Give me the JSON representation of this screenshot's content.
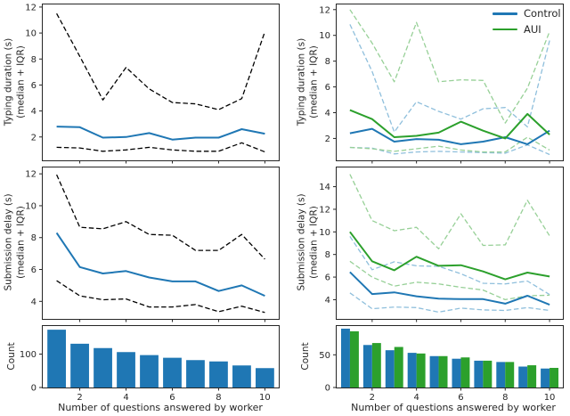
{
  "legend": {
    "entries": [
      {
        "label": "Control",
        "color": "#1f77b4"
      },
      {
        "label": "AUI",
        "color": "#2ca02c"
      }
    ]
  },
  "colors": {
    "control_solid": "#1f77b4",
    "aui_solid": "#2ca02c",
    "control_iqr_dashed": "#8fbfdc",
    "aui_iqr_dashed": "#97d097",
    "pooled_iqr_dashed": "#000000",
    "axis_text": "#262626"
  },
  "chart_data": [
    {
      "id": "top-left",
      "type": "line",
      "ylabel_lines": [
        "Typing duration (s)",
        "(median + IQR)"
      ],
      "x": [
        1,
        2,
        3,
        4,
        5,
        6,
        7,
        8,
        9,
        10
      ],
      "xlim": [
        0.4,
        10.6
      ],
      "ylim": [
        0.2,
        12.2
      ],
      "yticks": [
        2,
        4,
        6,
        8,
        10,
        12
      ],
      "xticks": [
        2,
        4,
        6,
        8,
        10
      ],
      "xtick_labels": false,
      "series": [
        {
          "name": "iqr-upper",
          "color": "#000000",
          "dash": true,
          "lw": 1.3,
          "values": [
            11.5,
            8.2,
            4.85,
            7.35,
            5.7,
            4.65,
            4.55,
            4.1,
            4.95,
            10.1
          ]
        },
        {
          "name": "iqr-lower",
          "color": "#000000",
          "dash": true,
          "lw": 1.3,
          "values": [
            1.2,
            1.15,
            0.9,
            1.0,
            1.2,
            1.0,
            0.9,
            0.9,
            1.55,
            0.85
          ]
        },
        {
          "name": "median",
          "color": "#1f77b4",
          "dash": false,
          "lw": 2,
          "values": [
            2.8,
            2.75,
            1.95,
            2.0,
            2.3,
            1.8,
            1.95,
            1.95,
            2.6,
            2.25
          ]
        }
      ]
    },
    {
      "id": "top-right",
      "type": "line",
      "ylabel_lines": [
        "Typing duration (s)",
        "(median + IQR)"
      ],
      "x": [
        1,
        2,
        3,
        4,
        5,
        6,
        7,
        8,
        9,
        10
      ],
      "xlim": [
        0.4,
        10.6
      ],
      "ylim": [
        0.3,
        12.4
      ],
      "yticks": [
        2,
        4,
        6,
        8,
        10,
        12
      ],
      "xticks": [
        2,
        4,
        6,
        8,
        10
      ],
      "xtick_labels": false,
      "series": [
        {
          "name": "control-iqr-upper",
          "color": "#8fbfdc",
          "dash": true,
          "lw": 1.3,
          "values": [
            10.85,
            7.2,
            2.5,
            4.85,
            4.1,
            3.5,
            4.3,
            4.4,
            2.9,
            9.6
          ]
        },
        {
          "name": "control-iqr-lower",
          "color": "#8fbfdc",
          "dash": true,
          "lw": 1.3,
          "values": [
            1.3,
            1.25,
            0.8,
            0.95,
            1.0,
            0.95,
            0.9,
            0.85,
            1.5,
            0.75
          ]
        },
        {
          "name": "aui-iqr-upper",
          "color": "#97d097",
          "dash": true,
          "lw": 1.3,
          "values": [
            12.0,
            9.4,
            6.4,
            11.0,
            6.4,
            6.55,
            6.5,
            3.2,
            5.9,
            10.3
          ]
        },
        {
          "name": "aui-iqr-lower",
          "color": "#97d097",
          "dash": true,
          "lw": 1.3,
          "values": [
            1.3,
            1.2,
            1.0,
            1.2,
            1.4,
            1.1,
            0.95,
            0.95,
            2.1,
            1.1
          ]
        },
        {
          "name": "control-median",
          "color": "#1f77b4",
          "dash": false,
          "lw": 2,
          "values": [
            2.4,
            2.75,
            1.75,
            1.95,
            1.9,
            1.55,
            1.75,
            2.1,
            1.55,
            2.6
          ]
        },
        {
          "name": "aui-median",
          "color": "#2ca02c",
          "dash": false,
          "lw": 2,
          "values": [
            4.2,
            3.5,
            2.1,
            2.2,
            2.45,
            3.3,
            2.6,
            2.0,
            3.9,
            2.3
          ]
        }
      ]
    },
    {
      "id": "middle-left",
      "type": "line",
      "ylabel_lines": [
        "Submission delay (s)",
        "(median + IQR)"
      ],
      "x": [
        1,
        2,
        3,
        4,
        5,
        6,
        7,
        8,
        9,
        10
      ],
      "xlim": [
        0.4,
        10.6
      ],
      "ylim": [
        2.9,
        12.4
      ],
      "yticks": [
        4,
        6,
        8,
        10,
        12
      ],
      "xticks": [
        2,
        4,
        6,
        8,
        10
      ],
      "xtick_labels": false,
      "series": [
        {
          "name": "iqr-upper",
          "color": "#000000",
          "dash": true,
          "lw": 1.3,
          "values": [
            11.95,
            8.65,
            8.55,
            9.0,
            8.2,
            8.15,
            7.2,
            7.2,
            8.2,
            6.65
          ]
        },
        {
          "name": "iqr-lower",
          "color": "#000000",
          "dash": true,
          "lw": 1.3,
          "values": [
            5.3,
            4.35,
            4.1,
            4.15,
            3.65,
            3.65,
            3.8,
            3.35,
            3.7,
            3.3
          ]
        },
        {
          "name": "median",
          "color": "#1f77b4",
          "dash": false,
          "lw": 2,
          "values": [
            8.3,
            6.15,
            5.75,
            5.9,
            5.5,
            5.25,
            5.25,
            4.65,
            5.0,
            4.35
          ]
        }
      ]
    },
    {
      "id": "middle-right",
      "type": "line",
      "ylabel_lines": [
        "Submission delay (s)",
        "(median + IQR)"
      ],
      "x": [
        1,
        2,
        3,
        4,
        5,
        6,
        7,
        8,
        9,
        10
      ],
      "xlim": [
        0.4,
        10.6
      ],
      "ylim": [
        2.3,
        15.7
      ],
      "yticks": [
        4,
        6,
        8,
        10,
        12,
        14
      ],
      "xticks": [
        2,
        4,
        6,
        8,
        10
      ],
      "xtick_labels": false,
      "series": [
        {
          "name": "control-iqr-upper",
          "color": "#8fbfdc",
          "dash": true,
          "lw": 1.3,
          "values": [
            9.6,
            6.65,
            7.35,
            7.0,
            6.95,
            6.3,
            5.45,
            5.4,
            5.65,
            4.45
          ]
        },
        {
          "name": "control-iqr-lower",
          "color": "#8fbfdc",
          "dash": true,
          "lw": 1.3,
          "values": [
            4.6,
            3.2,
            3.35,
            3.3,
            2.9,
            3.25,
            3.1,
            3.05,
            3.3,
            3.05
          ]
        },
        {
          "name": "aui-iqr-upper",
          "color": "#97d097",
          "dash": true,
          "lw": 1.3,
          "values": [
            15.1,
            11.0,
            10.1,
            10.4,
            8.5,
            11.6,
            8.8,
            8.85,
            12.8,
            9.65
          ]
        },
        {
          "name": "aui-iqr-lower",
          "color": "#97d097",
          "dash": true,
          "lw": 1.3,
          "values": [
            7.4,
            6.0,
            5.2,
            5.55,
            5.4,
            5.1,
            4.85,
            4.0,
            4.35,
            4.4
          ]
        },
        {
          "name": "control-median",
          "color": "#1f77b4",
          "dash": false,
          "lw": 2,
          "values": [
            6.45,
            4.5,
            4.65,
            4.3,
            4.1,
            4.05,
            4.05,
            3.65,
            4.35,
            3.55
          ]
        },
        {
          "name": "aui-median",
          "color": "#2ca02c",
          "dash": false,
          "lw": 2,
          "values": [
            10.0,
            7.4,
            6.6,
            7.8,
            7.0,
            7.05,
            6.5,
            5.8,
            6.4,
            6.05
          ]
        }
      ]
    },
    {
      "id": "bottom-left",
      "type": "bar",
      "ylabel": "Count",
      "xlabel": "Number of questions answered by worker",
      "x": [
        1,
        2,
        3,
        4,
        5,
        6,
        7,
        8,
        9,
        10
      ],
      "xlim": [
        0.4,
        10.6
      ],
      "ylim": [
        0,
        184
      ],
      "yticks": [
        0,
        100
      ],
      "xticks": [
        2,
        4,
        6,
        8,
        10
      ],
      "xtick_labels": true,
      "group_width": 0.8,
      "bar_groups": [
        {
          "name": "count",
          "color": "#1f77b4",
          "values": [
            173,
            131,
            118,
            106,
            97,
            89,
            82,
            78,
            66,
            58
          ]
        }
      ]
    },
    {
      "id": "bottom-right",
      "type": "bar",
      "ylabel": "Count",
      "xlabel": "Number of questions answered by worker",
      "x": [
        1,
        2,
        3,
        4,
        5,
        6,
        7,
        8,
        9,
        10
      ],
      "xlim": [
        0.4,
        10.6
      ],
      "ylim": [
        0,
        94
      ],
      "yticks": [
        0,
        50
      ],
      "xticks": [
        2,
        4,
        6,
        8,
        10
      ],
      "xtick_labels": true,
      "group_width": 0.8,
      "bar_groups": [
        {
          "name": "Control",
          "color": "#1f77b4",
          "values": [
            90,
            65,
            57,
            53,
            48,
            44,
            41,
            39,
            32,
            29
          ]
        },
        {
          "name": "AUI",
          "color": "#2ca02c",
          "values": [
            86,
            68,
            62,
            52,
            48,
            46,
            41,
            39,
            34,
            30
          ]
        }
      ]
    }
  ]
}
